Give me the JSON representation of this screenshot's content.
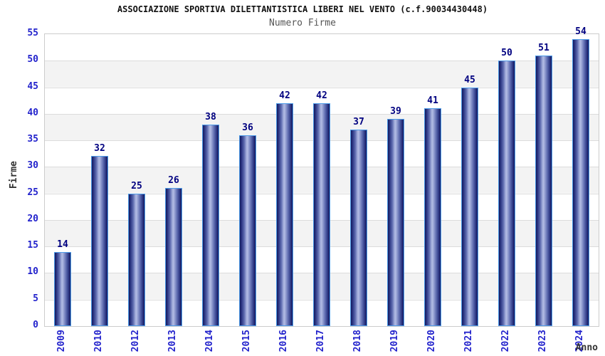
{
  "header": {
    "title": "ASSOCIAZIONE SPORTIVA DILETTANTISTICA LIBERI NEL VENTO (c.f.90034430448)",
    "subtitle": "Numero Firme"
  },
  "chart_data": {
    "type": "bar",
    "title": "ASSOCIAZIONE SPORTIVA DILETTANTISTICA LIBERI NEL VENTO (c.f.90034430448)",
    "subtitle": "Numero Firme",
    "xlabel": "Anno",
    "ylabel": "Firme",
    "categories": [
      "2009",
      "2010",
      "2012",
      "2013",
      "2014",
      "2015",
      "2016",
      "2017",
      "2018",
      "2019",
      "2020",
      "2021",
      "2022",
      "2023",
      "2024"
    ],
    "values": [
      14,
      32,
      25,
      26,
      38,
      36,
      42,
      42,
      37,
      39,
      41,
      45,
      50,
      51,
      54
    ],
    "ylim": [
      0,
      55
    ],
    "ytick_step": 5,
    "grid": true,
    "banded_background": true,
    "legend_position": "none",
    "value_labels_shown": true
  },
  "colors": {
    "title_color": "#111111",
    "subtitle_color": "#555555",
    "tick_color": "#2323cc",
    "value_label_color": "#000080",
    "axis_title_color": "#333333",
    "frame_color": "#cccccc",
    "grid_color": "#dcdcdc",
    "band_gray": "#f3f3f3",
    "bar_border": "#4d9be8",
    "bar_dark": "#141b5e",
    "bar_light": "#b2bce4"
  }
}
